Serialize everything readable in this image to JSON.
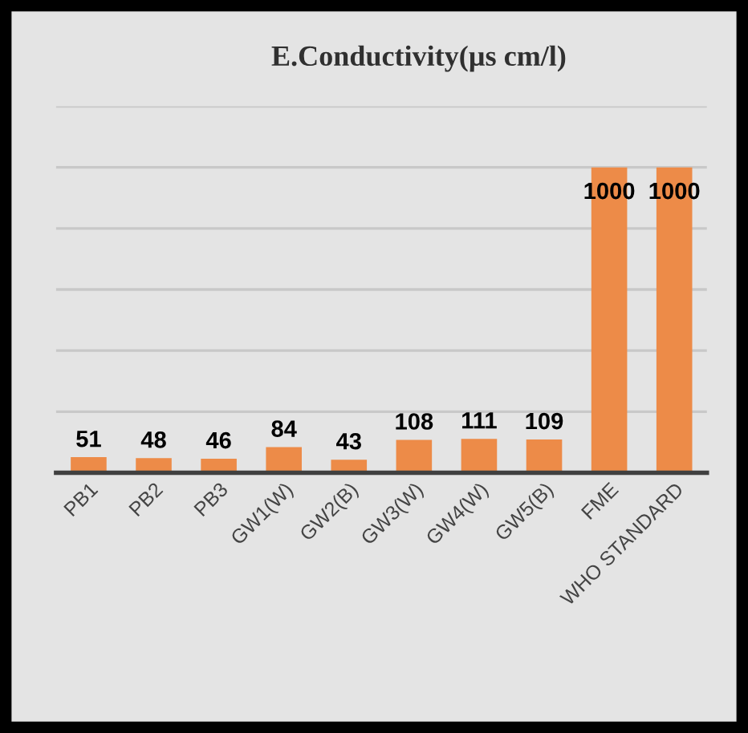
{
  "chart_data": {
    "type": "bar",
    "title": "E.Conductivity(µs cm/l)",
    "categories": [
      "PB1",
      "PB2",
      "PB3",
      "GW1(W)",
      "GW2(B)",
      "GW3(W)",
      "GW4(W)",
      "GW5(B)",
      "FME",
      "WHO STANDARD"
    ],
    "values": [
      51,
      48,
      46,
      84,
      43,
      108,
      111,
      109,
      1000,
      1000
    ],
    "color": "#ed8b48",
    "ylim": [
      0,
      1200
    ],
    "yticks": [
      {
        "value": 0,
        "label": null
      },
      {
        "value": 200,
        "label": null
      },
      {
        "value": 400,
        "label": null
      },
      {
        "value": 600,
        "label": null
      },
      {
        "value": 800,
        "label": null
      },
      {
        "value": 1000,
        "label": null
      },
      {
        "value": 1200,
        "label": null
      }
    ],
    "tick_labels": "x",
    "grid": "y",
    "data_labels": true,
    "legend": false
  }
}
